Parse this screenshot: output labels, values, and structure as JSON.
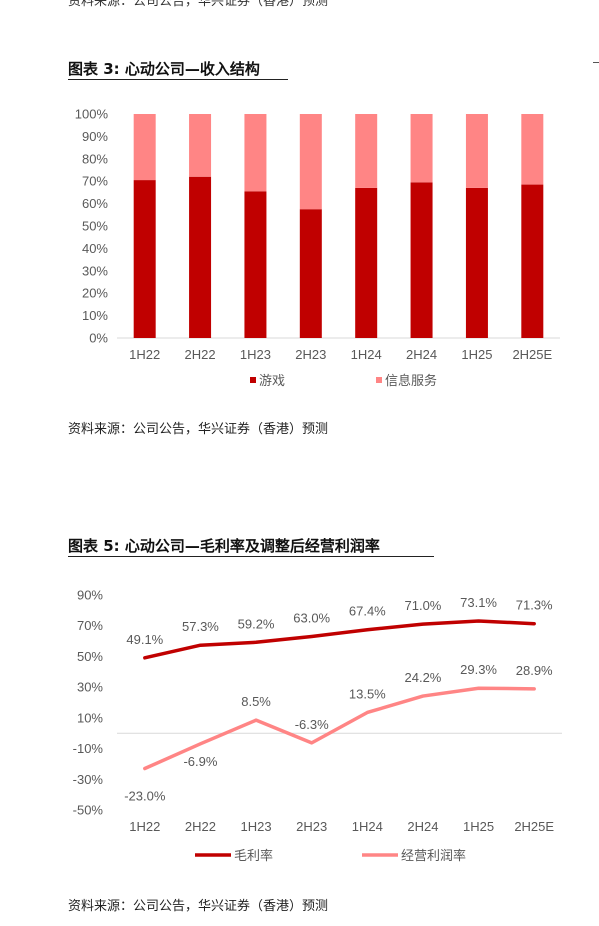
{
  "header_clip": "资料来源：公司公告，华兴证券（香港）预测",
  "colors": {
    "dark_red": "#c00000",
    "light_red": "#ff8585",
    "axis": "#d9d9d9",
    "text": "#595959"
  },
  "figures": [
    {
      "title": "图表 3: 心动公司—收入结构",
      "source": "资料来源：公司公告，华兴证券（香港）预测"
    },
    {
      "title": "图表 5: 心动公司—毛利率及调整后经营利润率",
      "source": "资料来源：公司公告，华兴证券（香港）预测"
    }
  ],
  "chart_data": [
    {
      "type": "bar",
      "stacked": true,
      "percent": true,
      "title": "图表 3: 心动公司—收入结构",
      "categories": [
        "1H22",
        "2H22",
        "1H23",
        "2H23",
        "1H24",
        "2H24",
        "1H25",
        "2H25E"
      ],
      "series": [
        {
          "name": "游戏",
          "color": "#c00000",
          "values": [
            70.5,
            72,
            65.5,
            57.5,
            67,
            69.5,
            67,
            68.5
          ]
        },
        {
          "name": "信息服务",
          "color": "#ff8585",
          "values": [
            29.5,
            28,
            34.5,
            42.5,
            33,
            30.5,
            33,
            31.5
          ]
        }
      ],
      "ylim": [
        0,
        100
      ],
      "yticks": [
        "0%",
        "10%",
        "20%",
        "30%",
        "40%",
        "50%",
        "60%",
        "70%",
        "80%",
        "90%",
        "100%"
      ],
      "legend": "bottom",
      "grid": false
    },
    {
      "type": "line",
      "title": "图表 5: 心动公司—毛利率及调整后经营利润率",
      "categories": [
        "1H22",
        "2H22",
        "1H23",
        "2H23",
        "1H24",
        "2H24",
        "1H25",
        "2H25E"
      ],
      "series": [
        {
          "name": "毛利率",
          "color": "#c00000",
          "values": [
            49.1,
            57.3,
            59.2,
            63.0,
            67.4,
            71.0,
            73.1,
            71.3
          ],
          "labels": [
            "49.1%",
            "57.3%",
            "59.2%",
            "63.0%",
            "67.4%",
            "71.0%",
            "73.1%",
            "71.3%"
          ]
        },
        {
          "name": "经营利润率",
          "color": "#ff8585",
          "values": [
            -23.0,
            -6.9,
            8.5,
            -6.3,
            13.5,
            24.2,
            29.3,
            28.9
          ],
          "labels": [
            "-23.0%",
            "-6.9%",
            "8.5%",
            "-6.3%",
            "13.5%",
            "24.2%",
            "29.3%",
            "28.9%"
          ]
        }
      ],
      "ylim": [
        -50,
        90
      ],
      "yticks": [
        "90%",
        "70%",
        "50%",
        "30%",
        "10%",
        "-10%",
        "-30%",
        "-50%"
      ],
      "legend_labels": [
        "毛利率",
        "经营利润率"
      ],
      "legend": "bottom",
      "grid": false
    }
  ]
}
